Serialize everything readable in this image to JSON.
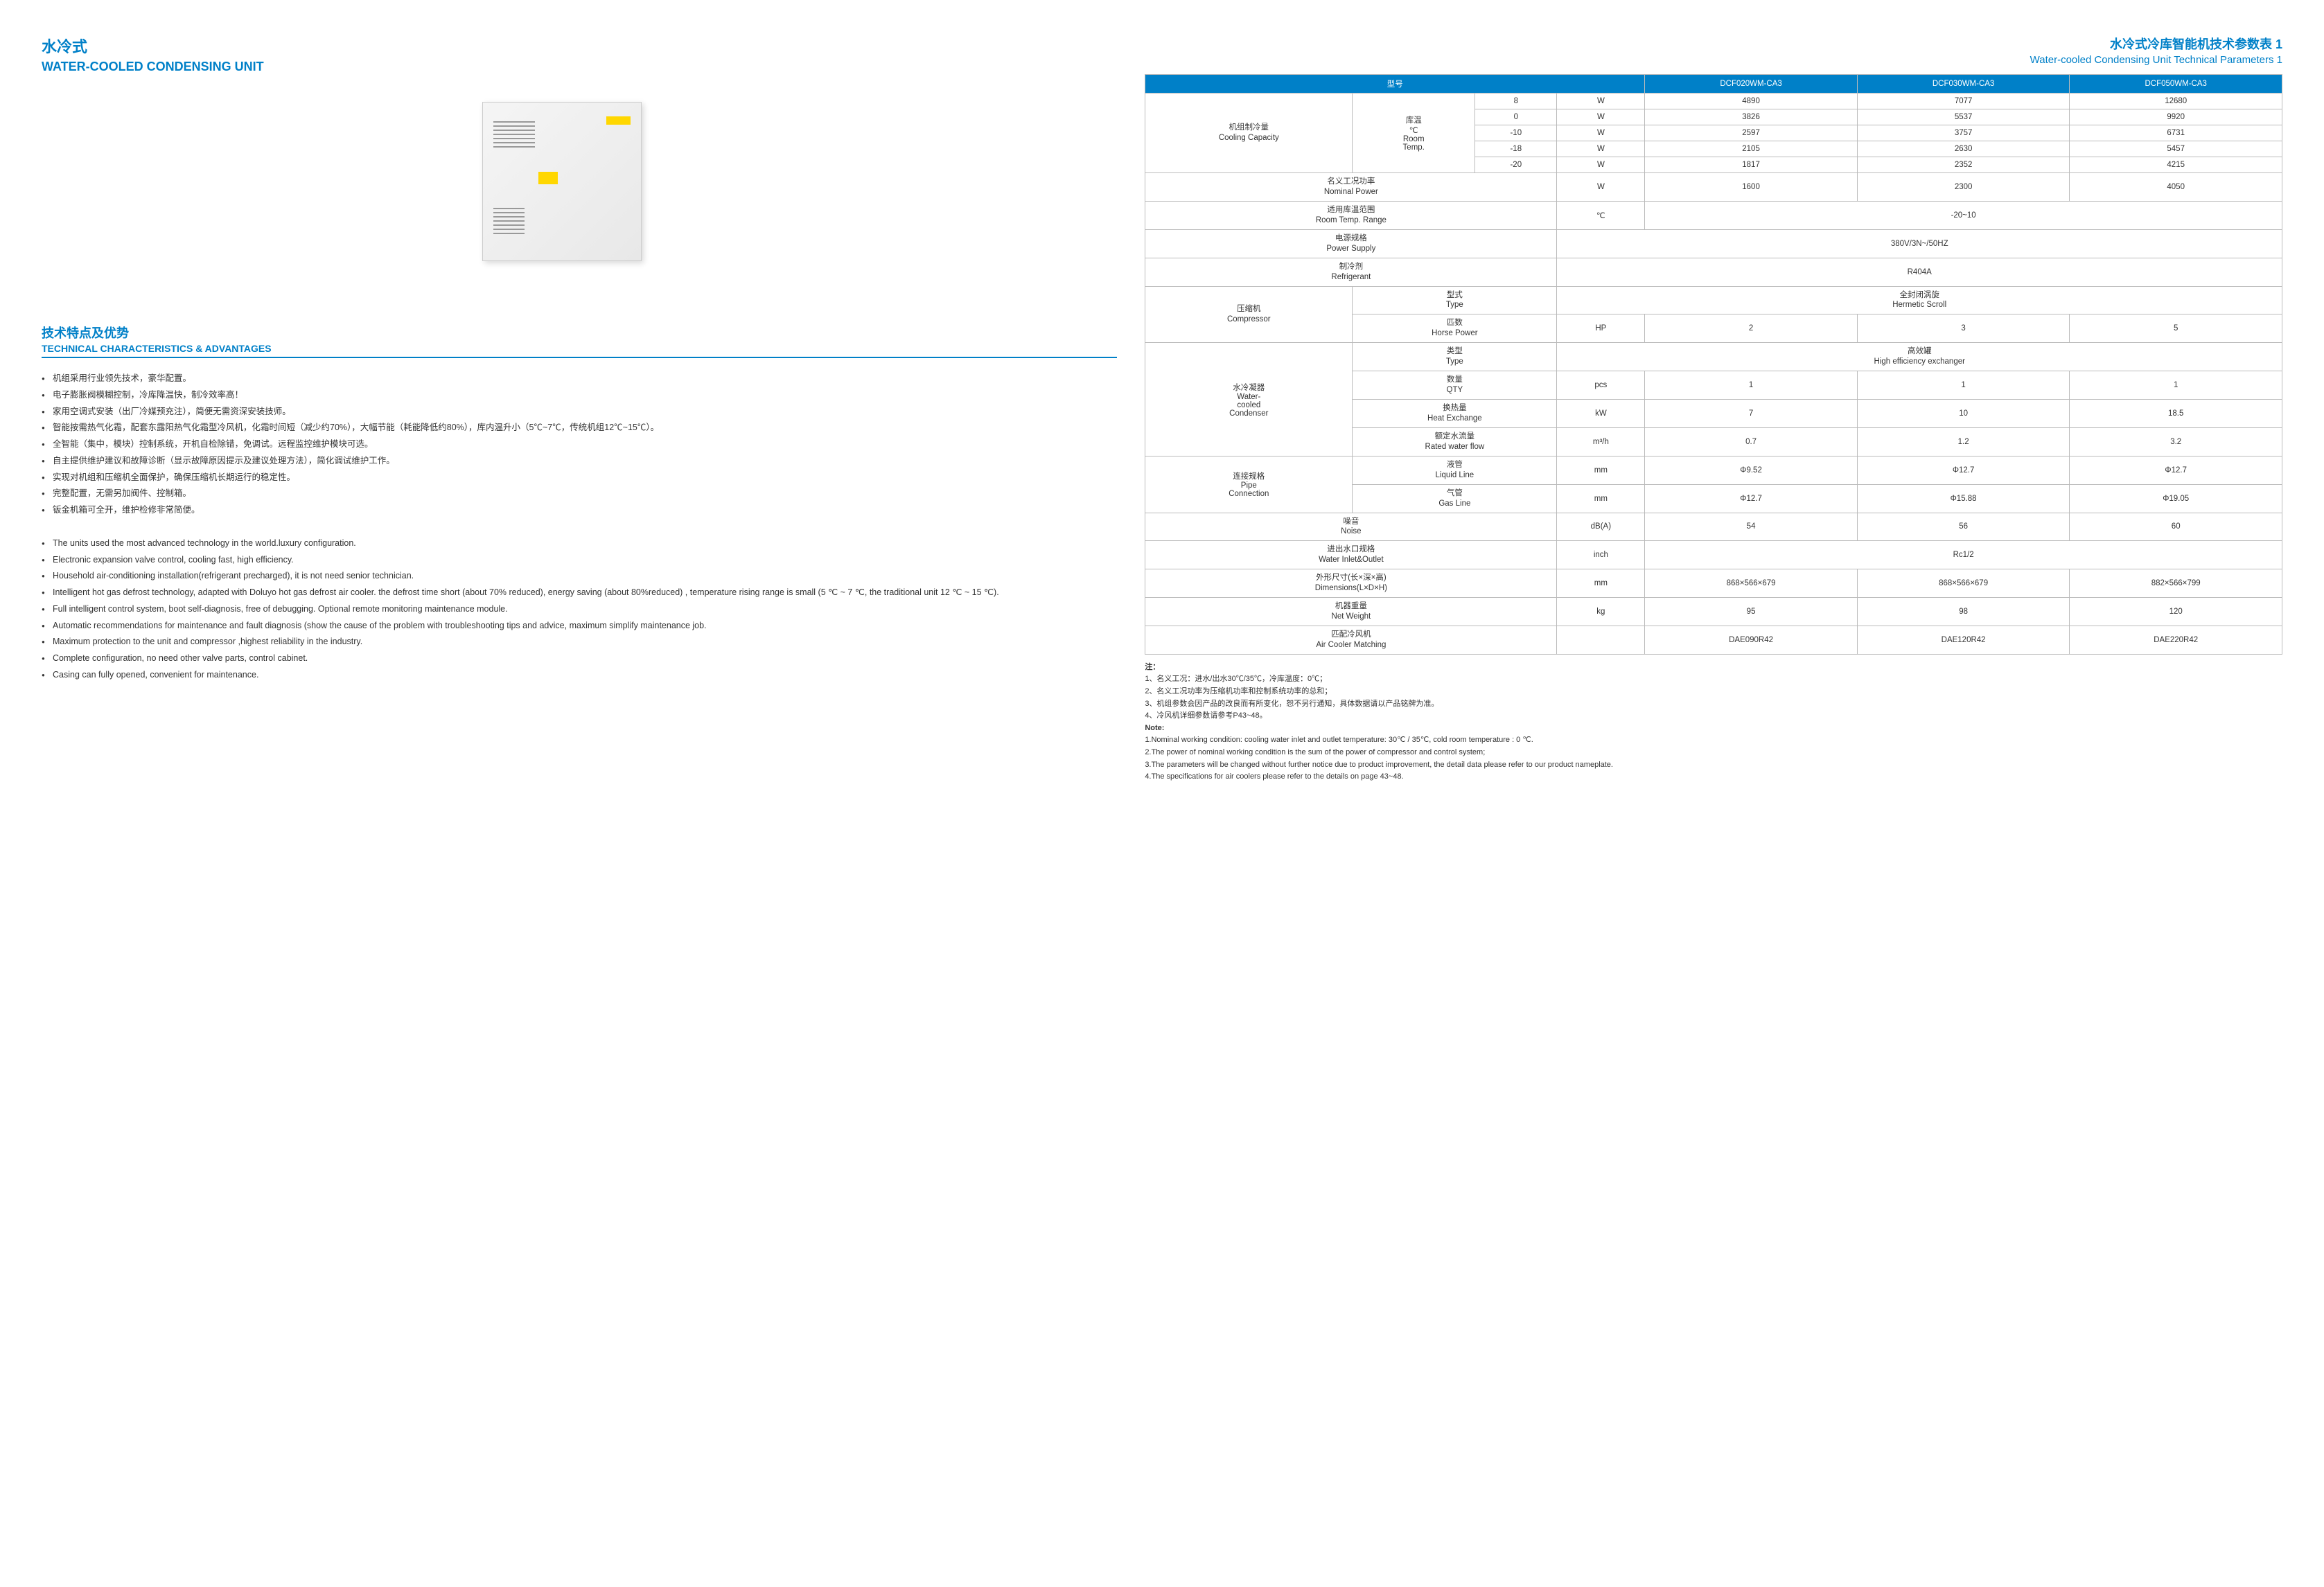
{
  "left": {
    "title_cn": "水冷式",
    "title_en": "WATER-COOLED CONDENSING UNIT",
    "section_cn": "技术特点及优势",
    "section_en": "TECHNICAL CHARACTERISTICS & ADVANTAGES",
    "features_cn": [
      "机组采用行业领先技术，豪华配置。",
      "电子膨胀阀模糊控制，冷库降温快，制冷效率高！",
      "家用空调式安装（出厂冷媒预充注），简便无需资深安装技师。",
      "智能按需热气化霜，配套东露阳热气化霜型冷风机，化霜时间短（减少约70%），大幅节能（耗能降低约80%），库内温升小（5℃~7℃，传统机组12℃~15℃）。",
      "全智能（集中，模块）控制系统，开机自检除错，免调试。远程监控维护模块可选。",
      "自主提供维护建议和故障诊断（显示故障原因提示及建议处理方法），简化调试维护工作。",
      "实现对机组和压缩机全面保护，确保压缩机长期运行的稳定性。",
      "完整配置，无需另加阀件、控制箱。",
      "钣金机箱可全开，维护检修非常简便。"
    ],
    "features_en": [
      "The units used the most advanced technology in the world.luxury configuration.",
      "Electronic expansion valve control, cooling fast, high efficiency.",
      "Household air-conditioning installation(refrigerant precharged), it is not need senior technician.",
      "Intelligent hot gas defrost technology, adapted with Doluyo hot gas defrost  air cooler. the defrost time short (about 70% reduced), energy saving (about 80%reduced) , temperature rising range is small (5 ℃ ~ 7 ℃, the traditional unit 12 ℃ ~ 15 ℃).",
      "Full intelligent control system, boot self-diagnosis, free of debugging. Optional remote monitoring maintenance module.",
      "Automatic recommendations for maintenance and fault diagnosis (show the cause of the problem with troubleshooting tips and advice, maximum simplify maintenance job.",
      "Maximum protection to the unit and compressor ,highest reliability in the industry.",
      "Complete configuration, no need other valve parts, control cabinet.",
      "Casing can fully opened, convenient for maintenance."
    ]
  },
  "right": {
    "title_cn": "水冷式冷库智能机技术参数表 1",
    "title_en": "Water-cooled Condensing Unit Technical Parameters 1",
    "header": {
      "model": "型号",
      "m1": "DCF020WM-CA3",
      "m2": "DCF030WM-CA3",
      "m3": "DCF050WM-CA3"
    },
    "capacity": {
      "label_cn": "机组制冷量",
      "label_en": "Cooling Capacity",
      "sub_cn": "库温",
      "sub_unit": "℃",
      "sub_en1": "Room",
      "sub_en2": "Temp.",
      "rows": [
        {
          "t": "8",
          "u": "W",
          "v1": "4890",
          "v2": "7077",
          "v3": "12680"
        },
        {
          "t": "0",
          "u": "W",
          "v1": "3826",
          "v2": "5537",
          "v3": "9920"
        },
        {
          "t": "-10",
          "u": "W",
          "v1": "2597",
          "v2": "3757",
          "v3": "6731"
        },
        {
          "t": "-18",
          "u": "W",
          "v1": "2105",
          "v2": "2630",
          "v3": "5457"
        },
        {
          "t": "-20",
          "u": "W",
          "v1": "1817",
          "v2": "2352",
          "v3": "4215"
        }
      ]
    },
    "nominal_power": {
      "label_cn": "名义工况功率",
      "label_en": "Nominal Power",
      "u": "W",
      "v1": "1600",
      "v2": "2300",
      "v3": "4050"
    },
    "temp_range": {
      "label_cn": "适用库温范围",
      "label_en": "Room Temp. Range",
      "u": "℃",
      "val": "-20~10"
    },
    "power_supply": {
      "label_cn": "电源规格",
      "label_en": "Power Supply",
      "val": "380V/3N~/50HZ"
    },
    "refrigerant": {
      "label_cn": "制冷剂",
      "label_en": "Refrigerant",
      "val": "R404A"
    },
    "compressor": {
      "label_cn": "压缩机",
      "label_en": "Compressor",
      "type": {
        "label_cn": "型式",
        "label_en": "Type",
        "val_cn": "全封闭涡旋",
        "val_en": "Hermetic Scroll"
      },
      "hp": {
        "label_cn": "匹数",
        "label_en": "Horse Power",
        "u": "HP",
        "v1": "2",
        "v2": "3",
        "v3": "5"
      }
    },
    "condenser": {
      "label_cn": "水冷凝器",
      "label_en_a": "Water-",
      "label_en_b": "cooled",
      "label_en_c": "Condenser",
      "type": {
        "label_cn": "类型",
        "label_en": "Type",
        "val_cn": "高效罐",
        "val_en": "High efficiency exchanger"
      },
      "qty": {
        "label_cn": "数量",
        "label_en": "QTY",
        "u": "pcs",
        "v1": "1",
        "v2": "1",
        "v3": "1"
      },
      "heat": {
        "label_cn": "换热量",
        "label_en": "Heat Exchange",
        "u": "kW",
        "v1": "7",
        "v2": "10",
        "v3": "18.5"
      },
      "flow": {
        "label_cn": "额定水流量",
        "label_en": "Rated water flow",
        "u": "m³/h",
        "v1": "0.7",
        "v2": "1.2",
        "v3": "3.2"
      }
    },
    "pipe": {
      "label_cn": "连接规格",
      "label_en_a": "Pipe",
      "label_en_b": "Connection",
      "liquid": {
        "label_cn": "液管",
        "label_en": "Liquid Line",
        "u": "mm",
        "v1": "Φ9.52",
        "v2": "Φ12.7",
        "v3": "Φ12.7"
      },
      "gas": {
        "label_cn": "气管",
        "label_en": "Gas Line",
        "u": "mm",
        "v1": "Φ12.7",
        "v2": "Φ15.88",
        "v3": "Φ19.05"
      }
    },
    "noise": {
      "label_cn": "噪音",
      "label_en": "Noise",
      "u": "dB(A)",
      "v1": "54",
      "v2": "56",
      "v3": "60"
    },
    "water_io": {
      "label_cn": "进出水口规格",
      "label_en": "Water Inlet&Outlet",
      "u": "inch",
      "val": "Rc1/2"
    },
    "dims": {
      "label_cn": "外形尺寸(长×深×高)",
      "label_en": "Dimensions(L×D×H)",
      "u": "mm",
      "v1": "868×566×679",
      "v2": "868×566×679",
      "v3": "882×566×799"
    },
    "weight": {
      "label_cn": "机器重量",
      "label_en": "Net Weight",
      "u": "kg",
      "v1": "95",
      "v2": "98",
      "v3": "120"
    },
    "cooler": {
      "label_cn": "匹配冷风机",
      "label_en": "Air Cooler Matching",
      "v1": "DAE090R42",
      "v2": "DAE120R42",
      "v3": "DAE220R42"
    },
    "notes_cn_hd": "注：",
    "notes_cn": [
      "1、名义工况：进水/出水30℃/35℃，冷库温度：0℃；",
      "2、名义工况功率为压缩机功率和控制系统功率的总和；",
      "3、机组参数会因产品的改良而有所变化，恕不另行通知，具体数据请以产品铭牌为准。",
      "4、冷风机详细参数请参考P43~48。"
    ],
    "notes_en_hd": "Note:",
    "notes_en": [
      "1.Nominal working condition: cooling water inlet and outlet temperature:  30℃ / 35℃,  cold room temperature : 0 ℃.",
      "2.The power of nominal working condition is the sum of the power of compressor and control system;",
      "3.The parameters will be changed without further notice due to product improvement, the detail data please refer to our product nameplate.",
      "4.The specifications for air coolers please refer to the details on page 43~48."
    ]
  },
  "colors": {
    "primary": "#0080c8",
    "border": "#bbbbbb",
    "text": "#333333"
  }
}
